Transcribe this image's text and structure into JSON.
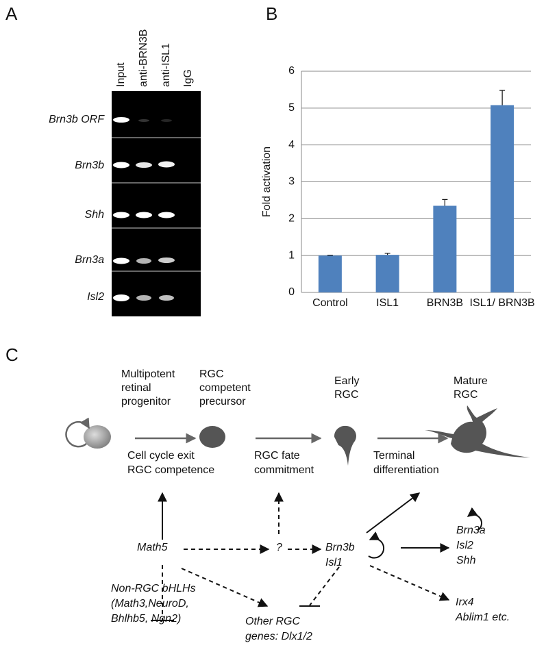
{
  "panels": {
    "a": "A",
    "b": "B",
    "c": "C"
  },
  "gel": {
    "lanes": [
      "Input",
      "anti-BRN3B",
      "anti-ISL1",
      "IgG"
    ],
    "rows": [
      "Brn3b ORF",
      "Brn3b",
      "Shh",
      "Brn3a",
      "Isl2"
    ]
  },
  "chart_data": {
    "type": "bar",
    "ylabel": "Fold activation",
    "categories": [
      "Control",
      "ISL1",
      "BRN3B",
      "ISL1/ BRN3B"
    ],
    "values": [
      1.0,
      1.02,
      2.35,
      5.08
    ],
    "errors": [
      0.01,
      0.04,
      0.17,
      0.4
    ],
    "color": "#4f81bd",
    "ylim": [
      0,
      6
    ],
    "yticks": [
      0,
      1,
      2,
      3,
      4,
      5,
      6
    ],
    "grid": true
  },
  "diagram": {
    "stages": [
      [
        "Multipotent",
        "retinal",
        "progenitor"
      ],
      [
        "RGC",
        "competent",
        "precursor"
      ],
      [
        "Early",
        "RGC"
      ],
      [
        "Mature",
        "RGC"
      ]
    ],
    "transitions": [
      [
        "Cell cycle exit",
        "RGC competence"
      ],
      [
        "RGC fate",
        "commitment"
      ],
      [
        "Terminal",
        "differentiation"
      ]
    ],
    "genes": {
      "math5": [
        "Math5"
      ],
      "unknown": [
        "?"
      ],
      "brn3b": [
        "Brn3b",
        "Isl1"
      ],
      "targets": [
        "Brn3a",
        "Isl2",
        "Shh"
      ],
      "late": [
        "Irx4",
        "Ablim1 etc."
      ],
      "nonrgc": [
        "Non-RGC bHLHs",
        "(Math3,NeuroD,",
        "Bhlhb5, Ngn2)"
      ],
      "other": [
        "Other RGC",
        "genes: Dlx1/2"
      ]
    }
  }
}
